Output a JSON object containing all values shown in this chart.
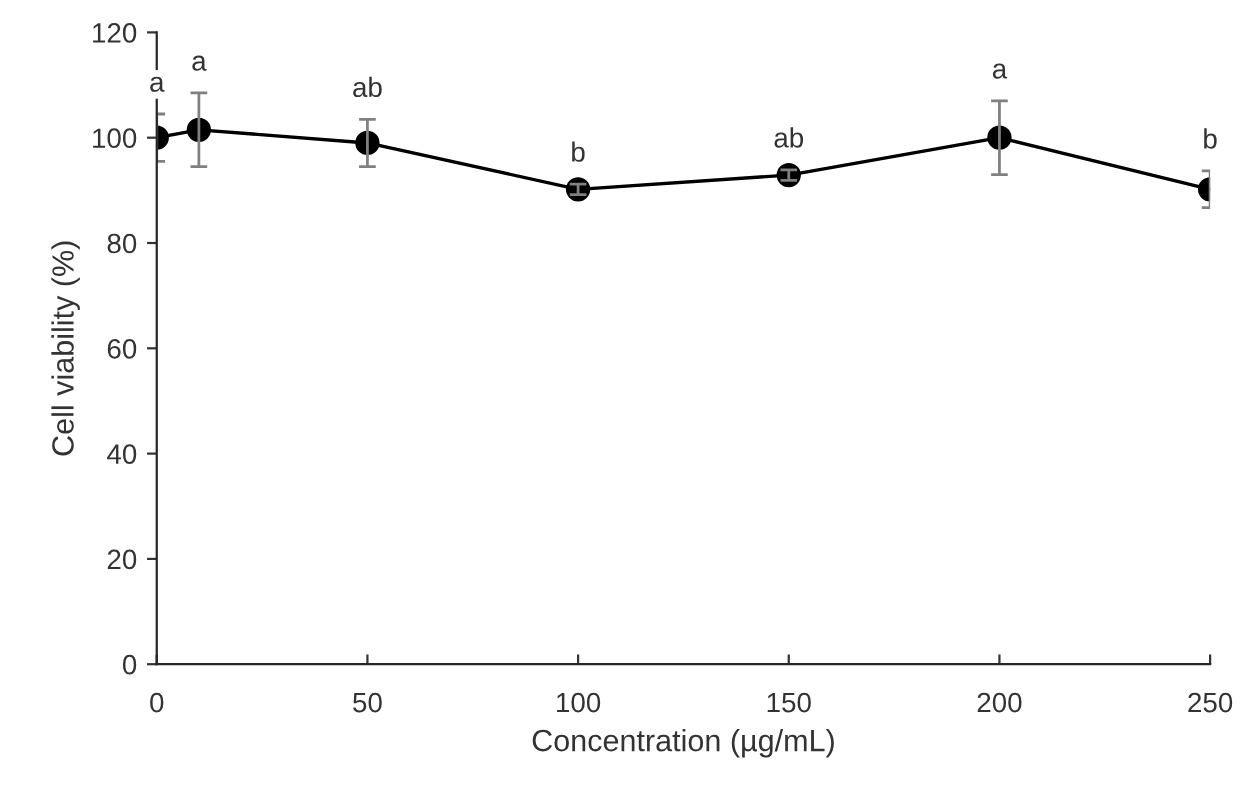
{
  "chart_data": {
    "type": "line",
    "xlabel": "Concentration (µg/mL)",
    "ylabel": "Cell viability (%)",
    "x": [
      0,
      10,
      50,
      100,
      150,
      200,
      250
    ],
    "series": [
      {
        "color": "#000000",
        "values": [
          100,
          101.5,
          99,
          90.2,
          92.9,
          100,
          90.2
        ],
        "errors": [
          4.5,
          7,
          4.5,
          1,
          1,
          7,
          3.5
        ]
      }
    ],
    "xlim": [
      0,
      250
    ],
    "xticks": [
      0,
      50,
      100,
      150,
      200,
      250
    ],
    "ylim": [
      0,
      120
    ],
    "yticks": [
      0,
      20,
      40,
      60,
      80,
      100,
      120
    ],
    "grid": false,
    "legend": false,
    "marker": "circle",
    "line_style": "solid",
    "annotations": [
      "a",
      "a",
      "ab",
      "b",
      "ab",
      "a",
      "b"
    ]
  }
}
